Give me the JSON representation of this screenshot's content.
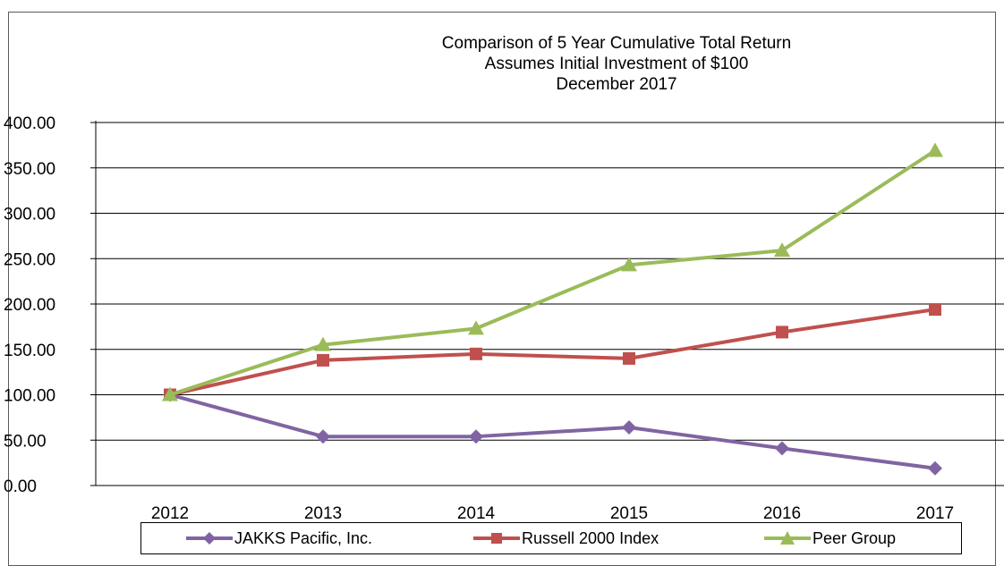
{
  "chart_data": {
    "type": "line",
    "title": [
      "Comparison of 5 Year Cumulative Total Return",
      "Assumes Initial Investment of $100",
      "December 2017"
    ],
    "x": [
      "2012",
      "2013",
      "2014",
      "2015",
      "2016",
      "2017"
    ],
    "ylim": [
      0,
      400
    ],
    "yticks": [
      "0.00",
      "50.00",
      "100.00",
      "150.00",
      "200.00",
      "250.00",
      "300.00",
      "350.00",
      "400.00"
    ],
    "grid": true,
    "legend_position": "bottom",
    "series": [
      {
        "name": "JAKKS Pacific, Inc.",
        "color": "#8064A2",
        "marker": "diamond",
        "values": [
          100,
          54,
          54,
          64,
          41,
          19
        ]
      },
      {
        "name": "Russell 2000 Index",
        "color": "#C0504D",
        "marker": "square",
        "values": [
          100,
          138,
          145,
          140,
          169,
          194
        ]
      },
      {
        "name": "Peer Group",
        "color": "#9BBB59",
        "marker": "triangle",
        "values": [
          100,
          155,
          173,
          243,
          259,
          369
        ]
      }
    ]
  }
}
